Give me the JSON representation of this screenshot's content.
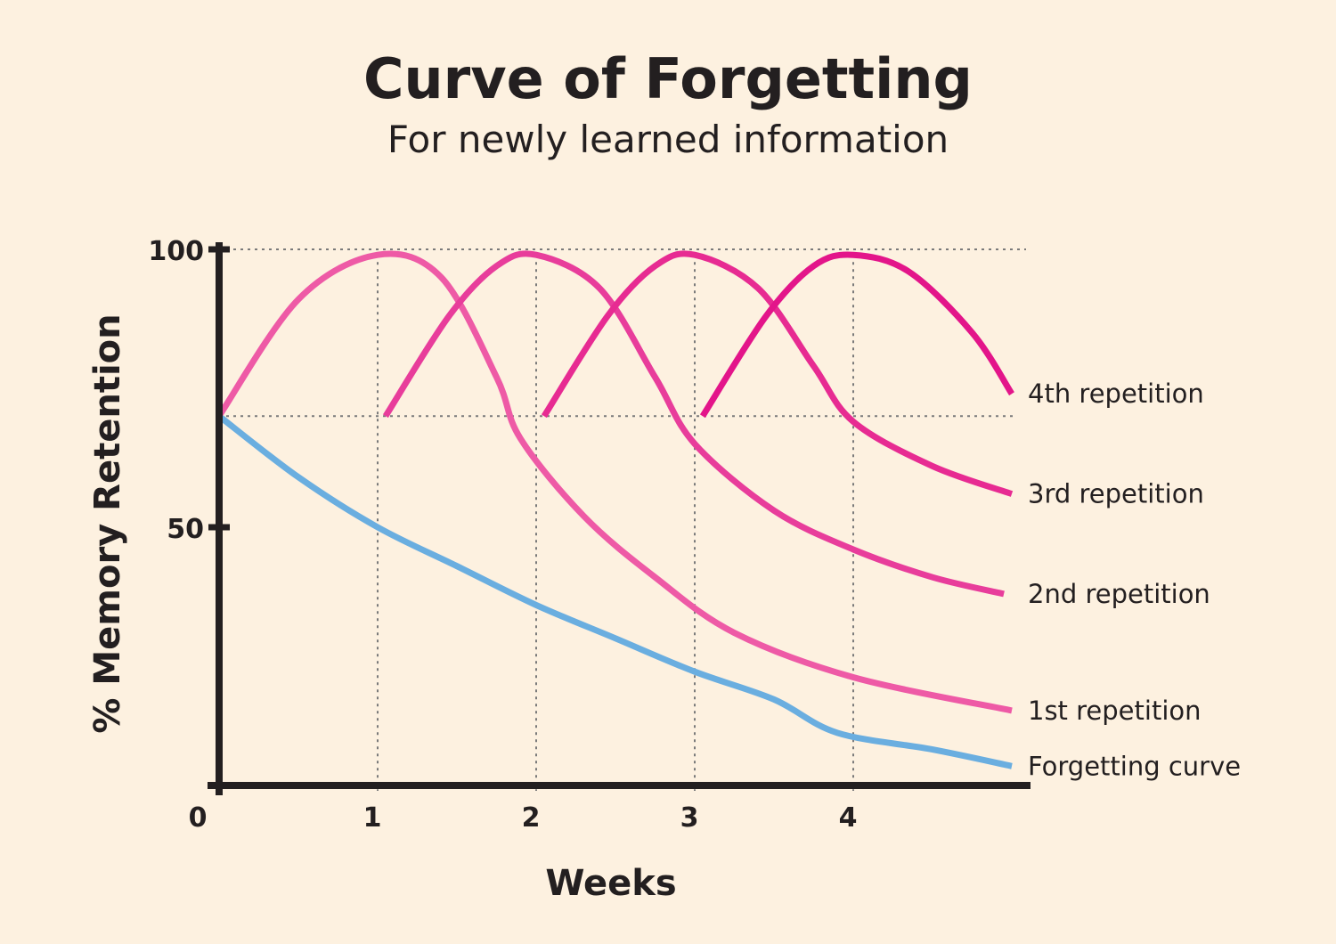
{
  "chart_data": {
    "type": "line",
    "title": "Curve of Forgetting",
    "subtitle": "For newly learned information",
    "xlabel": "Weeks",
    "ylabel": "% Memory Retention",
    "x_ticks": [
      "0",
      "1",
      "2",
      "3",
      "4"
    ],
    "y_ticks": [
      "50",
      "100"
    ],
    "xlim": [
      0,
      5
    ],
    "ylim": [
      0,
      100
    ],
    "grid": "dotted guides at weeks 1-4 and at 100% and 70%",
    "series": [
      {
        "name": "Forgetting curve",
        "color": "#6aaee0",
        "points": [
          [
            0,
            70
          ],
          [
            0.5,
            59
          ],
          [
            1,
            50
          ],
          [
            1.5,
            43
          ],
          [
            2,
            36
          ],
          [
            2.5,
            30
          ],
          [
            3,
            24
          ],
          [
            3.5,
            19
          ],
          [
            3.9,
            13
          ],
          [
            4.5,
            10
          ],
          [
            5,
            7
          ]
        ]
      },
      {
        "name": "1st repetition",
        "color": "#ee5aa6",
        "points": [
          [
            0,
            70
          ],
          [
            0.5,
            91
          ],
          [
            1,
            99
          ],
          [
            1.4,
            95
          ],
          [
            1.75,
            77
          ],
          [
            1.9,
            66
          ],
          [
            2.3,
            52
          ],
          [
            2.75,
            41
          ],
          [
            3.25,
            31
          ],
          [
            4,
            23
          ],
          [
            5,
            17
          ]
        ]
      },
      {
        "name": "2nd repetition",
        "color": "#e83d9b",
        "points": [
          [
            1.05,
            70
          ],
          [
            1.45,
            88
          ],
          [
            1.75,
            97
          ],
          [
            2,
            99
          ],
          [
            2.4,
            93
          ],
          [
            2.75,
            77
          ],
          [
            3,
            65
          ],
          [
            3.5,
            53
          ],
          [
            4,
            46
          ],
          [
            4.5,
            41
          ],
          [
            4.95,
            38
          ]
        ]
      },
      {
        "name": "3rd repetition",
        "color": "#e72b92",
        "points": [
          [
            2.05,
            70
          ],
          [
            2.45,
            88
          ],
          [
            2.75,
            97
          ],
          [
            3,
            99
          ],
          [
            3.4,
            93
          ],
          [
            3.75,
            79
          ],
          [
            4,
            69
          ],
          [
            4.5,
            61
          ],
          [
            5,
            56
          ]
        ]
      },
      {
        "name": "4th repetition",
        "color": "#e3158a",
        "points": [
          [
            3.05,
            70
          ],
          [
            3.45,
            88
          ],
          [
            3.75,
            97
          ],
          [
            4,
            99
          ],
          [
            4.35,
            96
          ],
          [
            4.75,
            85
          ],
          [
            5,
            74
          ]
        ]
      }
    ]
  }
}
